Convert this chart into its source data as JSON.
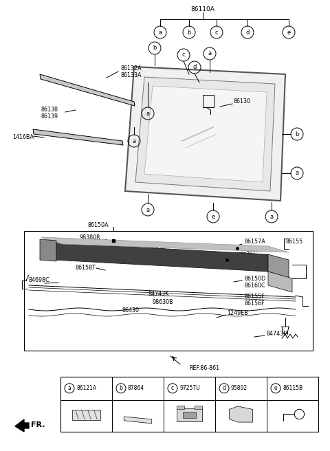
{
  "title": "86110A",
  "fig_width": 4.8,
  "fig_height": 6.56,
  "dpi": 100,
  "bg_color": "#ffffff",
  "line_color": "#000000",
  "top_circles": [
    "a",
    "b",
    "c",
    "d",
    "e"
  ],
  "bottom_table_items": [
    {
      "circle": "a",
      "code": "86121A"
    },
    {
      "circle": "b",
      "code": "87864"
    },
    {
      "circle": "c",
      "code": "97257U"
    },
    {
      "circle": "d",
      "code": "95892"
    },
    {
      "circle": "e",
      "code": "86115B"
    }
  ]
}
